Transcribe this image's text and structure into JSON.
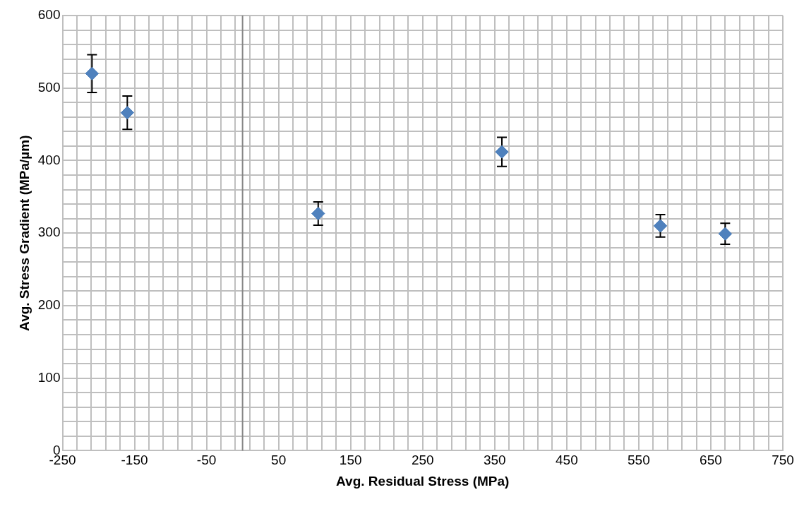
{
  "chart_data": {
    "type": "scatter",
    "xlabel": "Avg. Residual Stress (MPa)",
    "ylabel": "Avg. Stress Gradient (MPa/µm)",
    "x": [
      -209,
      -160,
      105,
      360,
      580,
      670
    ],
    "values": [
      520,
      466,
      327,
      412,
      310,
      299
    ],
    "errors": [
      26,
      23,
      16,
      20,
      15.5,
      14.5
    ],
    "color": "#4f81bd",
    "marker": "diamond",
    "grid": true,
    "legend": false,
    "xlim": [
      -250,
      750
    ],
    "xticks": [
      -250,
      {
        "value": -230,
        "label": null
      },
      {
        "value": -210,
        "label": null
      },
      {
        "value": -190,
        "label": null
      },
      {
        "value": -170,
        "label": null
      },
      -150,
      {
        "value": -130,
        "label": null
      },
      {
        "value": -110,
        "label": null
      },
      {
        "value": -90,
        "label": null
      },
      {
        "value": -70,
        "label": null
      },
      -50,
      {
        "value": -30,
        "label": null
      },
      {
        "value": -10,
        "label": null
      },
      {
        "value": 10,
        "label": null
      },
      {
        "value": 30,
        "label": null
      },
      50,
      {
        "value": 70,
        "label": null
      },
      {
        "value": 90,
        "label": null
      },
      {
        "value": 110,
        "label": null
      },
      {
        "value": 130,
        "label": null
      },
      150,
      {
        "value": 170,
        "label": null
      },
      {
        "value": 190,
        "label": null
      },
      {
        "value": 210,
        "label": null
      },
      {
        "value": 230,
        "label": null
      },
      250,
      {
        "value": 270,
        "label": null
      },
      {
        "value": 290,
        "label": null
      },
      {
        "value": 310,
        "label": null
      },
      {
        "value": 330,
        "label": null
      },
      350,
      {
        "value": 370,
        "label": null
      },
      {
        "value": 390,
        "label": null
      },
      {
        "value": 410,
        "label": null
      },
      {
        "value": 430,
        "label": null
      },
      450,
      {
        "value": 470,
        "label": null
      },
      {
        "value": 490,
        "label": null
      },
      {
        "value": 510,
        "label": null
      },
      {
        "value": 530,
        "label": null
      },
      550,
      {
        "value": 570,
        "label": null
      },
      {
        "value": 590,
        "label": null
      },
      {
        "value": 610,
        "label": null
      },
      {
        "value": 630,
        "label": null
      },
      650,
      {
        "value": 670,
        "label": null
      },
      {
        "value": 690,
        "label": null
      },
      {
        "value": 710,
        "label": null
      },
      {
        "value": 730,
        "label": null
      },
      750
    ],
    "ylim": [
      0,
      600
    ],
    "yticks": [
      0,
      {
        "value": 20,
        "label": null
      },
      {
        "value": 40,
        "label": null
      },
      {
        "value": 60,
        "label": null
      },
      {
        "value": 80,
        "label": null
      },
      100,
      {
        "value": 120,
        "label": null
      },
      {
        "value": 140,
        "label": null
      },
      {
        "value": 160,
        "label": null
      },
      {
        "value": 180,
        "label": null
      },
      200,
      {
        "value": 220,
        "label": null
      },
      {
        "value": 240,
        "label": null
      },
      {
        "value": 260,
        "label": null
      },
      {
        "value": 280,
        "label": null
      },
      300,
      {
        "value": 320,
        "label": null
      },
      {
        "value": 340,
        "label": null
      },
      {
        "value": 360,
        "label": null
      },
      {
        "value": 380,
        "label": null
      },
      400,
      {
        "value": 420,
        "label": null
      },
      {
        "value": 440,
        "label": null
      },
      {
        "value": 460,
        "label": null
      },
      {
        "value": 480,
        "label": null
      },
      500,
      {
        "value": 520,
        "label": null
      },
      {
        "value": 540,
        "label": null
      },
      {
        "value": 560,
        "label": null
      },
      {
        "value": 580,
        "label": null
      },
      600
    ],
    "ref_lines": [
      {
        "axis": "x",
        "value": 0,
        "color": "#868686"
      }
    ]
  }
}
